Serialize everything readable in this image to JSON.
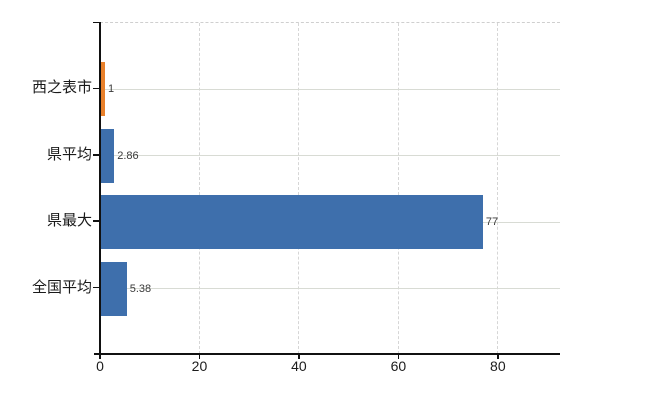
{
  "chart_data": {
    "type": "bar",
    "orientation": "horizontal",
    "title": "",
    "xlabel": "",
    "ylabel": "",
    "categories": [
      "西之表市",
      "県平均",
      "県最大",
      "全国平均"
    ],
    "values": [
      1,
      2.86,
      77,
      5.38
    ],
    "value_labels": [
      "1",
      "2.86",
      "77",
      "5.38"
    ],
    "bar_colors": [
      "#E8802B",
      "#3E6FAC",
      "#3E6FAC",
      "#3E6FAC"
    ],
    "x_ticks": [
      0,
      20,
      40,
      60,
      80
    ],
    "x_tick_labels": [
      "0",
      "20",
      "40",
      "60",
      "80"
    ],
    "xlim": [
      0,
      92.5
    ],
    "grid": true,
    "legend": false,
    "colors": {
      "bar_default": "#3E6FAC",
      "bar_highlight": "#E8802B",
      "axis": "#111111",
      "grid": "#D8D8D8",
      "category_text": "#1A1A1A",
      "value_text": "#3A3A3A",
      "background": "#FFFFFF"
    }
  }
}
